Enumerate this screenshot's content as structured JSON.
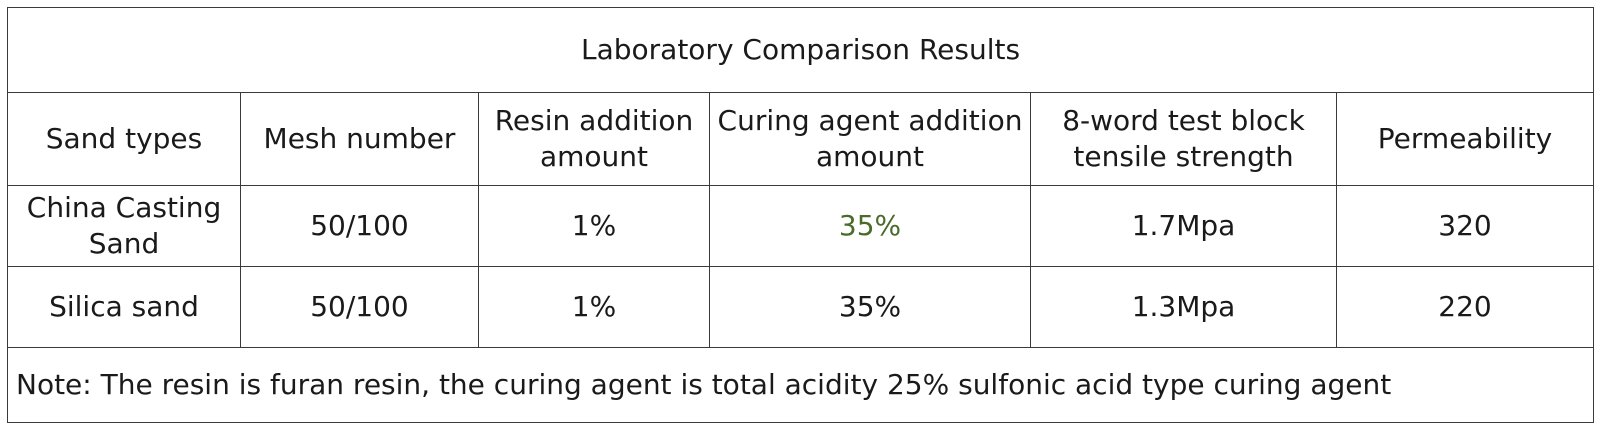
{
  "table": {
    "title": "Laboratory Comparison Results",
    "headers": {
      "sand_types": "Sand types",
      "mesh_number": "Mesh number",
      "resin_line1": "Resin addition",
      "resin_line2": "amount",
      "curing_line1": "Curing agent addition",
      "curing_line2": "amount",
      "tensile_line1": "8-word test block",
      "tensile_line2": "tensile strength",
      "permeability": "Permeability"
    },
    "rows": [
      {
        "sand_line1": "China Casting",
        "sand_line2": "Sand",
        "mesh": "50/100",
        "resin": "1%",
        "curing": "35%",
        "tensile": "1.7Mpa",
        "permeability": "320"
      },
      {
        "sand": "Silica sand",
        "mesh": "50/100",
        "resin": "1%",
        "curing": "35%",
        "tensile": "1.3Mpa",
        "permeability": "220"
      }
    ],
    "note": "Note: The resin is furan resin, the curing agent is total acidity 25% sulfonic acid type curing agent",
    "highlight_color": "#4a6b2a"
  }
}
